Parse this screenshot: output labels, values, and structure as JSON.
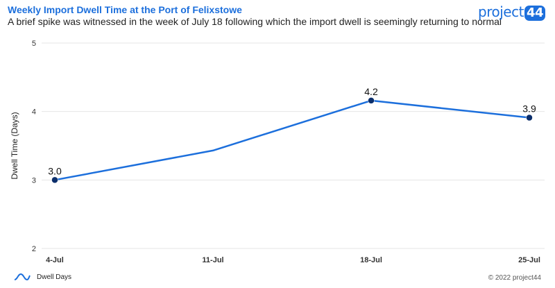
{
  "header": {
    "title": "Weekly Import Dwell Time at the Port of Felixstowe",
    "subtitle": "A brief spike was witnessed in the week of July 18 following which the import dwell is seemingly returning to normal"
  },
  "logo": {
    "text": "project",
    "number": "44"
  },
  "footer": {
    "legend_label": "Dwell Days",
    "copyright": "© 2022 project44"
  },
  "colors": {
    "line": "#1c6fdc",
    "marker": "#0b2e6b",
    "title": "#1c6fdc",
    "grid": "#e5e5e5"
  },
  "chart_data": {
    "type": "line",
    "categories": [
      "4-Jul",
      "11-Jul",
      "18-Jul",
      "25-Jul"
    ],
    "series": [
      {
        "name": "Dwell Days",
        "values": [
          3.0,
          3.43,
          4.16,
          3.91
        ],
        "labels": [
          "3.0",
          "",
          "4.2",
          "3.9"
        ],
        "markers": [
          true,
          false,
          true,
          true
        ]
      }
    ],
    "xlabel": "",
    "ylabel": "Dwell Time (Days)",
    "ylim": [
      2,
      5
    ],
    "yticks": [
      2,
      3,
      4,
      5
    ],
    "grid": true,
    "legend": "bottom-left"
  }
}
